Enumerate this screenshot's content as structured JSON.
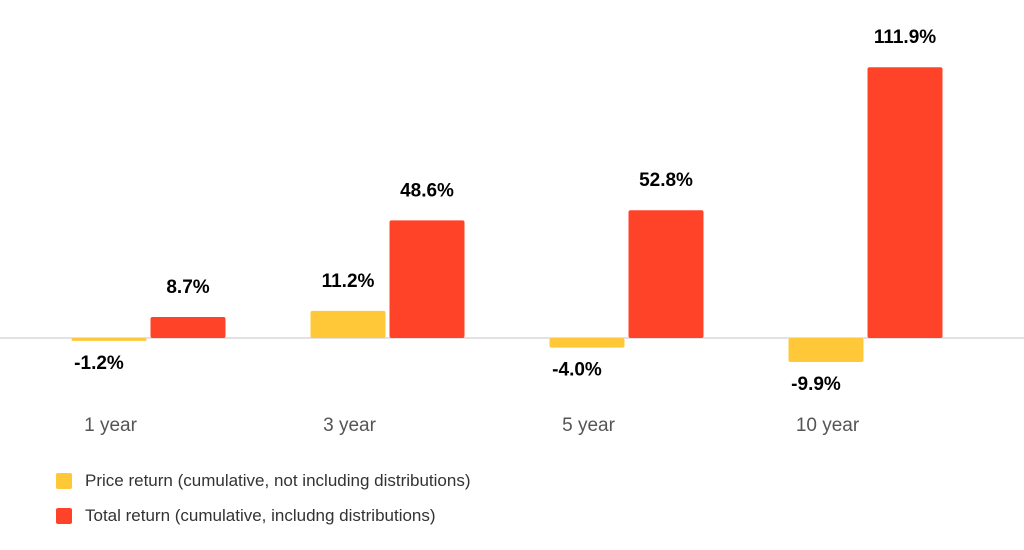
{
  "chart_data": {
    "type": "bar",
    "categories": [
      "1 year",
      "3 year",
      "5 year",
      "10 year"
    ],
    "series": [
      {
        "name": "Price return (cumulative, not including distributions)",
        "values": [
          -1.2,
          11.2,
          -4.0,
          -9.9
        ],
        "labels": [
          "-1.2%",
          "11.2%",
          "-4.0%",
          "-9.9%"
        ],
        "color": "#FFC839"
      },
      {
        "name": "Total return (cumulative, includng distributions)",
        "values": [
          8.7,
          48.6,
          52.8,
          111.9
        ],
        "labels": [
          "8.7%",
          "48.6%",
          "52.8%",
          "111.9%"
        ],
        "color": "#FF4329"
      }
    ],
    "title": "",
    "xlabel": "",
    "ylabel": "",
    "ylim": [
      -12,
      115
    ],
    "grid": false,
    "legend_position": "bottom-left",
    "data_labels": true
  }
}
